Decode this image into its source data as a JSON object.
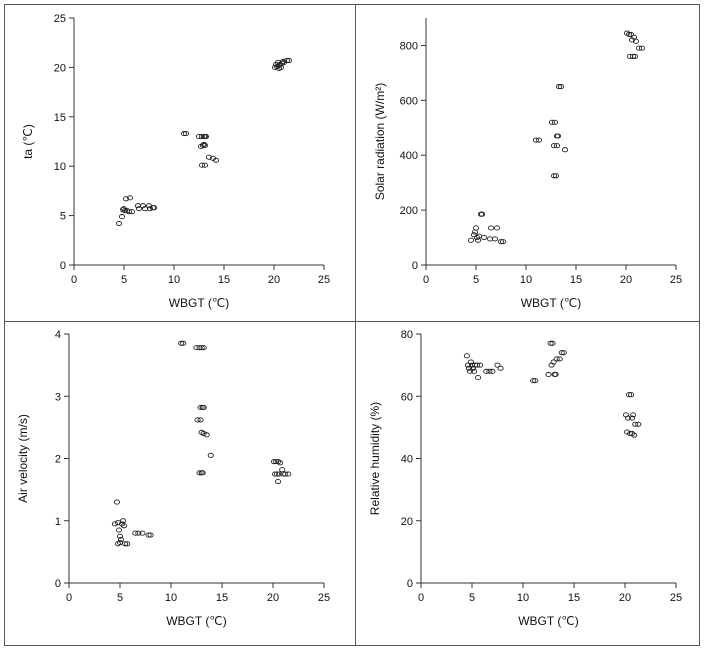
{
  "chart_data": [
    {
      "type": "scatter",
      "xlabel": "WBGT (℃)",
      "ylabel": "ta (℃)",
      "xlim": [
        0,
        25
      ],
      "ylim": [
        0,
        25
      ],
      "xticks": [
        0,
        5,
        10,
        15,
        20,
        25
      ],
      "yticks": [
        0,
        5,
        10,
        15,
        20,
        25
      ],
      "grid": false,
      "points": [
        [
          4.5,
          4.2
        ],
        [
          4.8,
          4.9
        ],
        [
          4.9,
          5.6
        ],
        [
          5.0,
          5.7
        ],
        [
          5.1,
          5.5
        ],
        [
          5.3,
          5.5
        ],
        [
          5.5,
          5.4
        ],
        [
          5.8,
          5.4
        ],
        [
          5.2,
          6.7
        ],
        [
          5.6,
          6.8
        ],
        [
          6.4,
          6.0
        ],
        [
          6.5,
          5.7
        ],
        [
          6.9,
          6.0
        ],
        [
          7.1,
          5.7
        ],
        [
          7.5,
          6.0
        ],
        [
          7.6,
          5.7
        ],
        [
          7.9,
          5.8
        ],
        [
          8.0,
          5.8
        ],
        [
          11.0,
          13.3
        ],
        [
          11.2,
          13.3
        ],
        [
          12.5,
          13.0
        ],
        [
          12.8,
          13.0
        ],
        [
          13.0,
          13.0
        ],
        [
          13.1,
          13.0
        ],
        [
          13.2,
          13.0
        ],
        [
          12.7,
          12.0
        ],
        [
          12.9,
          12.1
        ],
        [
          13.0,
          12.2
        ],
        [
          13.1,
          12.1
        ],
        [
          12.8,
          10.1
        ],
        [
          13.1,
          10.1
        ],
        [
          13.5,
          10.9
        ],
        [
          13.9,
          10.8
        ],
        [
          14.2,
          10.6
        ],
        [
          20.1,
          20.0
        ],
        [
          20.3,
          20.1
        ],
        [
          20.4,
          20.5
        ],
        [
          20.5,
          20.2
        ],
        [
          20.6,
          20.3
        ],
        [
          20.7,
          20.0
        ],
        [
          20.8,
          20.4
        ],
        [
          20.9,
          20.6
        ],
        [
          21.0,
          20.5
        ],
        [
          21.3,
          20.7
        ],
        [
          21.5,
          20.7
        ],
        [
          20.2,
          20.3
        ],
        [
          20.5,
          19.9
        ]
      ]
    },
    {
      "type": "scatter",
      "xlabel": "WBGT (℃)",
      "ylabel": "Solar radiation (W/m²)",
      "xlim": [
        0,
        25
      ],
      "ylim": [
        0,
        900
      ],
      "xticks": [
        0,
        5,
        10,
        15,
        20,
        25
      ],
      "yticks": [
        0,
        200,
        400,
        600,
        800
      ],
      "grid": false,
      "points": [
        [
          4.5,
          90
        ],
        [
          4.8,
          110
        ],
        [
          4.9,
          120
        ],
        [
          5.0,
          135
        ],
        [
          5.1,
          100
        ],
        [
          5.2,
          90
        ],
        [
          5.3,
          105
        ],
        [
          5.5,
          185
        ],
        [
          5.6,
          185
        ],
        [
          5.8,
          100
        ],
        [
          6.4,
          95
        ],
        [
          6.5,
          135
        ],
        [
          6.9,
          95
        ],
        [
          7.1,
          135
        ],
        [
          7.5,
          85
        ],
        [
          7.7,
          85
        ],
        [
          11.0,
          455
        ],
        [
          11.3,
          455
        ],
        [
          12.6,
          520
        ],
        [
          12.9,
          520
        ],
        [
          12.8,
          435
        ],
        [
          13.1,
          435
        ],
        [
          12.8,
          325
        ],
        [
          13.0,
          325
        ],
        [
          13.1,
          470
        ],
        [
          13.2,
          470
        ],
        [
          13.3,
          650
        ],
        [
          13.5,
          650
        ],
        [
          13.9,
          420
        ],
        [
          20.1,
          845
        ],
        [
          20.3,
          840
        ],
        [
          20.5,
          840
        ],
        [
          20.6,
          820
        ],
        [
          20.8,
          830
        ],
        [
          21.0,
          815
        ],
        [
          20.4,
          760
        ],
        [
          20.7,
          760
        ],
        [
          20.9,
          760
        ],
        [
          21.3,
          790
        ],
        [
          21.6,
          790
        ]
      ]
    },
    {
      "type": "scatter",
      "xlabel": "WBGT (℃)",
      "ylabel": "Air velocity (m/s)",
      "xlim": [
        0,
        25
      ],
      "ylim": [
        0,
        4
      ],
      "xticks": [
        0,
        5,
        10,
        15,
        20,
        25
      ],
      "yticks": [
        0,
        1,
        2,
        3,
        4
      ],
      "grid": false,
      "points": [
        [
          4.5,
          0.95
        ],
        [
          4.7,
          1.3
        ],
        [
          4.8,
          0.97
        ],
        [
          4.9,
          0.85
        ],
        [
          5.0,
          0.75
        ],
        [
          5.1,
          0.7
        ],
        [
          5.0,
          0.65
        ],
        [
          5.2,
          0.95
        ],
        [
          5.4,
          0.92
        ],
        [
          5.5,
          0.63
        ],
        [
          5.7,
          0.63
        ],
        [
          4.8,
          0.63
        ],
        [
          5.3,
          1.0
        ],
        [
          6.5,
          0.8
        ],
        [
          6.8,
          0.8
        ],
        [
          7.2,
          0.8
        ],
        [
          7.8,
          0.77
        ],
        [
          8.0,
          0.77
        ],
        [
          11.0,
          3.85
        ],
        [
          11.2,
          3.85
        ],
        [
          12.5,
          3.78
        ],
        [
          12.8,
          3.78
        ],
        [
          13.0,
          3.78
        ],
        [
          13.2,
          3.78
        ],
        [
          12.9,
          2.82
        ],
        [
          13.1,
          2.82
        ],
        [
          13.2,
          2.82
        ],
        [
          12.6,
          2.62
        ],
        [
          12.9,
          2.62
        ],
        [
          13.0,
          2.42
        ],
        [
          13.2,
          2.4
        ],
        [
          13.5,
          2.38
        ],
        [
          13.9,
          2.05
        ],
        [
          12.8,
          1.77
        ],
        [
          13.0,
          1.77
        ],
        [
          13.1,
          1.77
        ],
        [
          20.1,
          1.95
        ],
        [
          20.3,
          1.95
        ],
        [
          20.5,
          1.95
        ],
        [
          20.7,
          1.93
        ],
        [
          20.4,
          1.75
        ],
        [
          20.6,
          1.75
        ],
        [
          20.9,
          1.82
        ],
        [
          21.0,
          1.75
        ],
        [
          21.2,
          1.75
        ],
        [
          21.5,
          1.75
        ],
        [
          20.5,
          1.63
        ],
        [
          20.2,
          1.75
        ]
      ]
    },
    {
      "type": "scatter",
      "xlabel": "WBGT (℃)",
      "ylabel": "Relative humidity (%)",
      "xlim": [
        0,
        25
      ],
      "ylim": [
        0,
        80
      ],
      "xticks": [
        0,
        5,
        10,
        15,
        20,
        25
      ],
      "yticks": [
        0,
        20,
        40,
        60,
        80
      ],
      "grid": false,
      "points": [
        [
          4.5,
          73
        ],
        [
          4.6,
          70
        ],
        [
          4.7,
          69
        ],
        [
          4.8,
          68
        ],
        [
          4.9,
          71
        ],
        [
          5.0,
          70
        ],
        [
          5.1,
          69
        ],
        [
          5.2,
          68
        ],
        [
          5.3,
          70
        ],
        [
          5.5,
          70
        ],
        [
          5.6,
          66
        ],
        [
          5.8,
          70
        ],
        [
          6.4,
          68
        ],
        [
          6.7,
          68
        ],
        [
          7.0,
          68
        ],
        [
          7.5,
          70
        ],
        [
          7.8,
          69
        ],
        [
          11.0,
          65
        ],
        [
          11.2,
          65
        ],
        [
          12.5,
          67
        ],
        [
          12.7,
          77
        ],
        [
          12.9,
          77
        ],
        [
          12.8,
          70
        ],
        [
          13.0,
          71
        ],
        [
          13.1,
          67
        ],
        [
          13.2,
          67
        ],
        [
          13.3,
          72
        ],
        [
          13.6,
          72
        ],
        [
          13.8,
          74
        ],
        [
          14.0,
          74
        ],
        [
          20.1,
          54
        ],
        [
          20.3,
          53
        ],
        [
          20.4,
          60.5
        ],
        [
          20.6,
          60.5
        ],
        [
          20.7,
          53
        ],
        [
          20.2,
          48.5
        ],
        [
          20.5,
          48
        ],
        [
          20.7,
          48
        ],
        [
          20.9,
          47.5
        ],
        [
          21.0,
          51
        ],
        [
          21.3,
          51
        ],
        [
          20.8,
          54
        ]
      ]
    }
  ]
}
